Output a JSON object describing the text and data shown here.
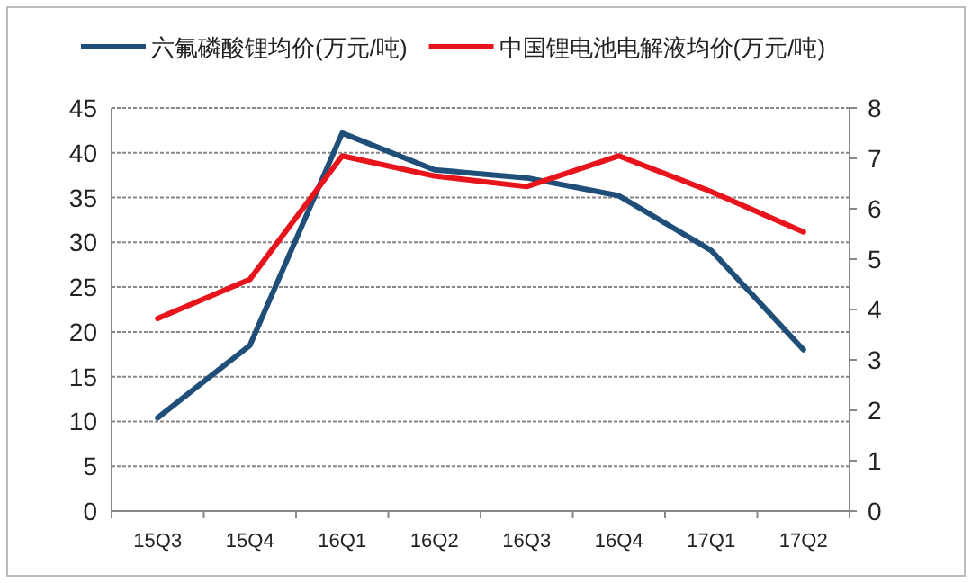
{
  "chart_data": {
    "type": "line",
    "categories": [
      "15Q3",
      "15Q4",
      "16Q1",
      "16Q2",
      "16Q3",
      "16Q4",
      "17Q1",
      "17Q2"
    ],
    "series": [
      {
        "name": "六氟磷酸锂均价(万元/吨)",
        "color": "#1f4e79",
        "values": [
          10.4,
          18.5,
          42.2,
          38.1,
          37.2,
          35.2,
          29.1,
          18.0
        ]
      },
      {
        "name": "中国锂电池电解液均价(万元/吨)",
        "color": "#e8141c",
        "axis": "y2",
        "values": [
          3.82,
          4.6,
          7.05,
          6.65,
          6.44,
          7.05,
          6.34,
          5.54
        ]
      }
    ],
    "ylim": [
      0,
      45
    ],
    "yticks": [
      0,
      5,
      10,
      15,
      20,
      25,
      30,
      35,
      40,
      45
    ],
    "y2lim": [
      0,
      8
    ],
    "y2ticks": [
      0,
      1,
      2,
      3,
      4,
      5,
      6,
      7,
      8
    ],
    "grid": "y",
    "legend": "top",
    "marker": "none",
    "line_style": "solid"
  }
}
